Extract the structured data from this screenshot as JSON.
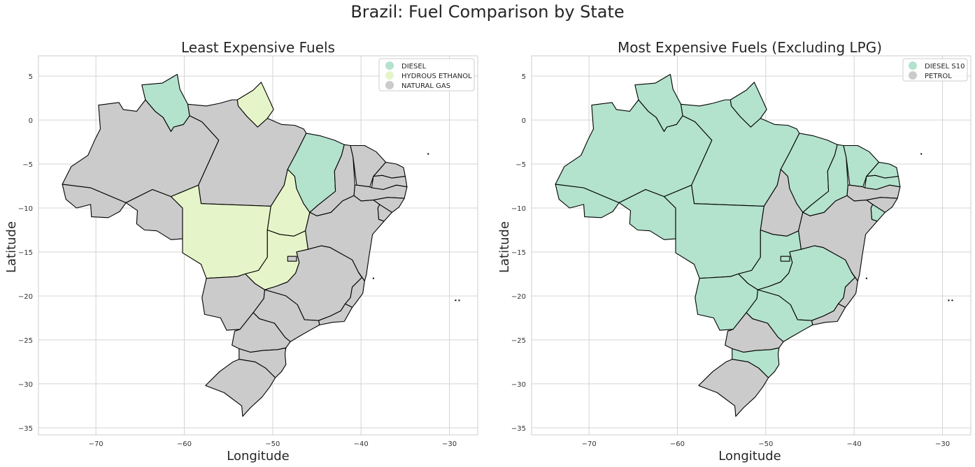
{
  "figure": {
    "title": "Brazil: Fuel Comparison by State",
    "colors": {
      "teal": "#b3e2cd",
      "lime": "#e6f5c9",
      "gray": "#cbcbcb"
    }
  },
  "panels": [
    {
      "id": "left",
      "title": "Least Expensive Fuels",
      "xlabel": "Longitude",
      "ylabel": "Latitude",
      "legend": [
        {
          "label": "DIESEL",
          "color": "#b3e2cd"
        },
        {
          "label": "HYDROUS ETHANOL",
          "color": "#e6f5c9"
        },
        {
          "label": "NATURAL GAS",
          "color": "#cbcbcb"
        }
      ],
      "states": {
        "AC": "NATURAL GAS",
        "AM": "NATURAL GAS",
        "RR": "DIESEL",
        "PA": "NATURAL GAS",
        "AP": "HYDROUS ETHANOL",
        "RO": "NATURAL GAS",
        "MT": "HYDROUS ETHANOL",
        "TO": "HYDROUS ETHANOL",
        "MA": "DIESEL",
        "PI": "NATURAL GAS",
        "CE": "NATURAL GAS",
        "RN": "NATURAL GAS",
        "PB": "NATURAL GAS",
        "PE": "NATURAL GAS",
        "AL": "NATURAL GAS",
        "SE": "NATURAL GAS",
        "BA": "NATURAL GAS",
        "GO": "HYDROUS ETHANOL",
        "DF": "NATURAL GAS",
        "MS": "NATURAL GAS",
        "MG": "NATURAL GAS",
        "ES": "NATURAL GAS",
        "RJ": "NATURAL GAS",
        "SP": "NATURAL GAS",
        "PR": "NATURAL GAS",
        "SC": "NATURAL GAS",
        "RS": "NATURAL GAS"
      }
    },
    {
      "id": "right",
      "title": "Most Expensive Fuels (Excluding LPG)",
      "xlabel": "Longitude",
      "ylabel": "Latitude",
      "legend": [
        {
          "label": "DIESEL S10",
          "color": "#b3e2cd"
        },
        {
          "label": "PETROL",
          "color": "#cbcbcb"
        }
      ],
      "states": {
        "AC": "DIESEL S10",
        "AM": "DIESEL S10",
        "RR": "DIESEL S10",
        "PA": "DIESEL S10",
        "AP": "DIESEL S10",
        "RO": "DIESEL S10",
        "MT": "DIESEL S10",
        "TO": "PETROL",
        "MA": "DIESEL S10",
        "PI": "DIESEL S10",
        "CE": "DIESEL S10",
        "RN": "DIESEL S10",
        "PB": "DIESEL S10",
        "PE": "PETROL",
        "AL": "PETROL",
        "SE": "DIESEL S10",
        "BA": "PETROL",
        "GO": "DIESEL S10",
        "DF": "DIESEL S10",
        "MS": "DIESEL S10",
        "MG": "DIESEL S10",
        "ES": "PETROL",
        "RJ": "PETROL",
        "SP": "DIESEL S10",
        "PR": "PETROL",
        "SC": "DIESEL S10",
        "RS": "PETROL"
      }
    }
  ],
  "axes": {
    "xlim": [
      -76.5,
      -26.8
    ],
    "ylim": [
      -35.8,
      7.3
    ],
    "xticks": [
      -70,
      -60,
      -50,
      -40,
      -30
    ],
    "yticks": [
      5,
      0,
      -5,
      -10,
      -15,
      -20,
      -25,
      -30,
      -35
    ],
    "xtick_labels": [
      "−70",
      "−60",
      "−50",
      "−40",
      "−30"
    ],
    "ytick_labels": [
      "5",
      "0",
      "−5",
      "−10",
      "−15",
      "−20",
      "−25",
      "−30",
      "−35"
    ]
  }
}
